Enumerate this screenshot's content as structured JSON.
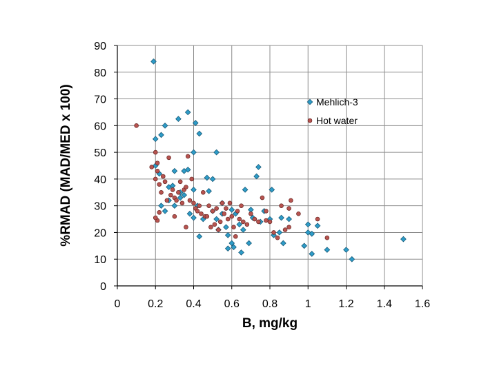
{
  "chart_data": {
    "type": "scatter",
    "title": "",
    "xlabel": "B, mg/kg",
    "ylabel": "%RMAD (MAD/MED x 100)",
    "xlim": [
      0,
      1.6
    ],
    "ylim": [
      0,
      90
    ],
    "xticks": [
      0,
      0.2,
      0.4,
      0.6,
      0.8,
      1,
      1.2,
      1.4,
      1.6
    ],
    "xtick_labels": [
      "0",
      "0.2",
      "0.4",
      "0.6",
      "0.8",
      "1",
      "1.2",
      "1.4",
      "1.6"
    ],
    "yticks": [
      0,
      10,
      20,
      30,
      40,
      50,
      60,
      70,
      80,
      90
    ],
    "ytick_labels": [
      "0",
      "10",
      "20",
      "30",
      "40",
      "50",
      "60",
      "70",
      "80",
      "90"
    ],
    "grid": true,
    "legend_position": "top-right",
    "series": [
      {
        "name": "Mehlich-3",
        "marker": "diamond",
        "color": "#2e9cc8",
        "edge": "#1a5b78",
        "points": [
          [
            0.19,
            84
          ],
          [
            0.2,
            55
          ],
          [
            0.23,
            56.5
          ],
          [
            0.25,
            60
          ],
          [
            0.32,
            62.5
          ],
          [
            0.37,
            65
          ],
          [
            0.35,
            43
          ],
          [
            0.37,
            43.5
          ],
          [
            0.2,
            45
          ],
          [
            0.22,
            42
          ],
          [
            0.27,
            37
          ],
          [
            0.29,
            37.5
          ],
          [
            0.3,
            43
          ],
          [
            0.33,
            35
          ],
          [
            0.4,
            50
          ],
          [
            0.41,
            61
          ],
          [
            0.43,
            57
          ],
          [
            0.47,
            40.5
          ],
          [
            0.5,
            40
          ],
          [
            0.52,
            50
          ],
          [
            0.23,
            30
          ],
          [
            0.25,
            28
          ],
          [
            0.27,
            32
          ],
          [
            0.3,
            30
          ],
          [
            0.33,
            33
          ],
          [
            0.35,
            34
          ],
          [
            0.38,
            27
          ],
          [
            0.4,
            36
          ],
          [
            0.42,
            30
          ],
          [
            0.4,
            25.5
          ],
          [
            0.43,
            18.5
          ],
          [
            0.45,
            25
          ],
          [
            0.48,
            35.5
          ],
          [
            0.5,
            28
          ],
          [
            0.52,
            25
          ],
          [
            0.53,
            21
          ],
          [
            0.55,
            27
          ],
          [
            0.57,
            22
          ],
          [
            0.58,
            19
          ],
          [
            0.58,
            14
          ],
          [
            0.6,
            16
          ],
          [
            0.61,
            14.5
          ],
          [
            0.62,
            27
          ],
          [
            0.64,
            23
          ],
          [
            0.65,
            12.5
          ],
          [
            0.66,
            21
          ],
          [
            0.67,
            36
          ],
          [
            0.69,
            16
          ],
          [
            0.7,
            28.5
          ],
          [
            0.71,
            25.5
          ],
          [
            0.73,
            41
          ],
          [
            0.74,
            44.5
          ],
          [
            0.75,
            24
          ],
          [
            0.77,
            28
          ],
          [
            0.8,
            25
          ],
          [
            0.81,
            36
          ],
          [
            0.82,
            19
          ],
          [
            0.85,
            20
          ],
          [
            0.86,
            25.5
          ],
          [
            0.87,
            16
          ],
          [
            0.9,
            25
          ],
          [
            0.98,
            15
          ],
          [
            1.0,
            23
          ],
          [
            1.0,
            20
          ],
          [
            1.02,
            19.5
          ],
          [
            1.02,
            12
          ],
          [
            1.05,
            22.5
          ],
          [
            1.1,
            13.5
          ],
          [
            1.2,
            13.5
          ],
          [
            1.23,
            10
          ],
          [
            1.5,
            17.5
          ],
          [
            0.6,
            28.5
          ],
          [
            0.55,
            31
          ]
        ]
      },
      {
        "name": "Hot water",
        "marker": "circle",
        "color": "#b85450",
        "edge": "#6e2a27",
        "points": [
          [
            0.1,
            60
          ],
          [
            0.18,
            44.5
          ],
          [
            0.2,
            50
          ],
          [
            0.2,
            40
          ],
          [
            0.21,
            46
          ],
          [
            0.21,
            43
          ],
          [
            0.22,
            38
          ],
          [
            0.23,
            35
          ],
          [
            0.24,
            41
          ],
          [
            0.25,
            39
          ],
          [
            0.26,
            32
          ],
          [
            0.27,
            48
          ],
          [
            0.28,
            34
          ],
          [
            0.29,
            36
          ],
          [
            0.3,
            33
          ],
          [
            0.31,
            32
          ],
          [
            0.32,
            35
          ],
          [
            0.33,
            39
          ],
          [
            0.34,
            31
          ],
          [
            0.35,
            36
          ],
          [
            0.36,
            37
          ],
          [
            0.37,
            48.5
          ],
          [
            0.38,
            32
          ],
          [
            0.39,
            40
          ],
          [
            0.4,
            31
          ],
          [
            0.41,
            29
          ],
          [
            0.42,
            28
          ],
          [
            0.43,
            30
          ],
          [
            0.44,
            27
          ],
          [
            0.45,
            35
          ],
          [
            0.46,
            26
          ],
          [
            0.48,
            30
          ],
          [
            0.49,
            22
          ],
          [
            0.5,
            28
          ],
          [
            0.51,
            23
          ],
          [
            0.52,
            29
          ],
          [
            0.53,
            21
          ],
          [
            0.54,
            24
          ],
          [
            0.55,
            31
          ],
          [
            0.56,
            27
          ],
          [
            0.57,
            29
          ],
          [
            0.58,
            25
          ],
          [
            0.59,
            31
          ],
          [
            0.6,
            26
          ],
          [
            0.61,
            22
          ],
          [
            0.62,
            18.5
          ],
          [
            0.63,
            28
          ],
          [
            0.64,
            25
          ],
          [
            0.65,
            30
          ],
          [
            0.66,
            24
          ],
          [
            0.68,
            23
          ],
          [
            0.7,
            27
          ],
          [
            0.72,
            25
          ],
          [
            0.74,
            24
          ],
          [
            0.76,
            33
          ],
          [
            0.78,
            28
          ],
          [
            0.8,
            24
          ],
          [
            0.82,
            20
          ],
          [
            0.84,
            18
          ],
          [
            0.86,
            30
          ],
          [
            0.88,
            21
          ],
          [
            0.9,
            22
          ],
          [
            0.91,
            32
          ],
          [
            0.95,
            27
          ],
          [
            1.05,
            25
          ],
          [
            1.1,
            18
          ],
          [
            0.21,
            24.5
          ],
          [
            0.2,
            25.5
          ],
          [
            0.22,
            27.5
          ],
          [
            0.3,
            26
          ],
          [
            0.36,
            22
          ],
          [
            0.47,
            26
          ],
          [
            0.9,
            29
          ],
          [
            0.78,
            24.5
          ]
        ]
      }
    ]
  }
}
